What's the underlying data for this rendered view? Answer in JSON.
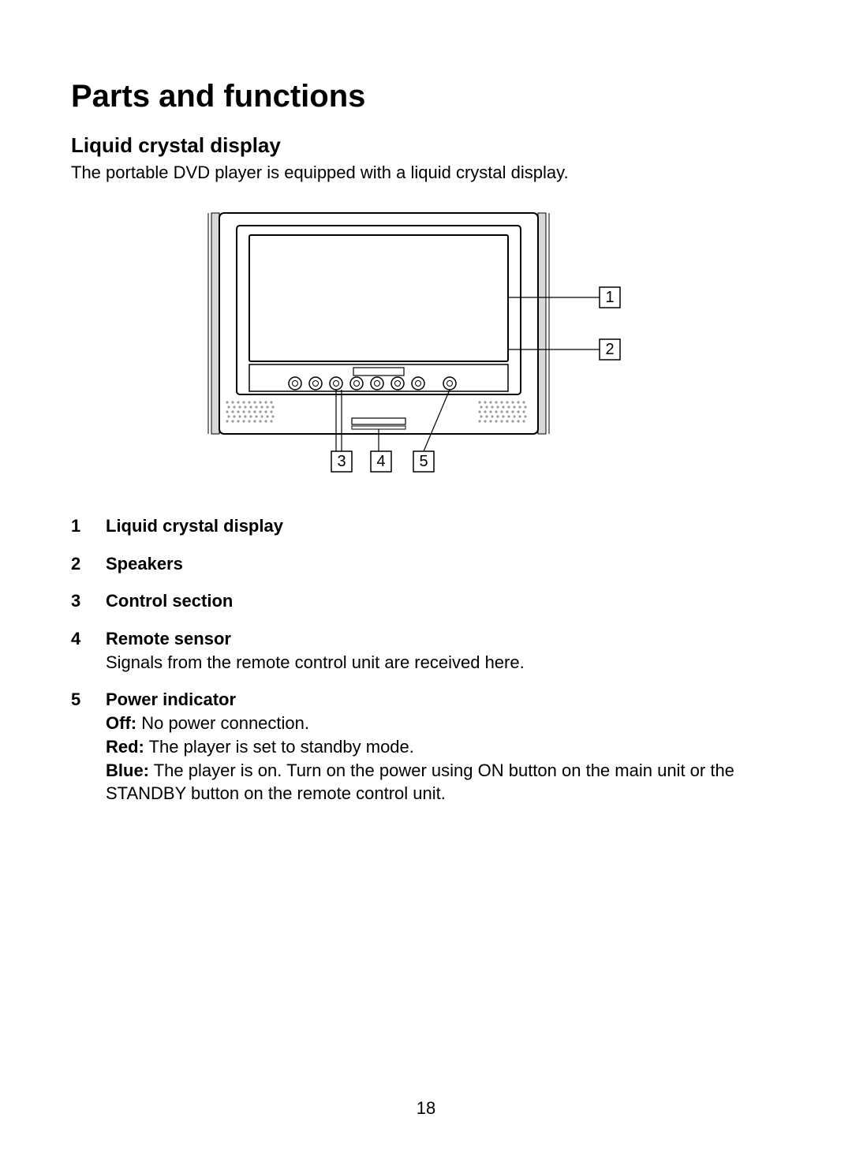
{
  "title": "Parts and functions",
  "section_heading": "Liquid crystal display",
  "intro": "The portable DVD player is equipped with a liquid crystal display.",
  "diagram": {
    "outer_stroke": "#000000",
    "inner_fill": "#ffffff",
    "side_rail_fill": "#d9d9d9",
    "speaker_dot_fill": "#9a9a9a",
    "button_stroke": "#000000",
    "callouts": [
      "1",
      "2",
      "3",
      "4",
      "5"
    ]
  },
  "items": [
    {
      "n": "1",
      "label": "Liquid crystal display"
    },
    {
      "n": "2",
      "label": "Speakers"
    },
    {
      "n": "3",
      "label": "Control section"
    },
    {
      "n": "4",
      "label": "Remote sensor",
      "desc": "Signals from the remote control unit are received here."
    },
    {
      "n": "5",
      "label": "Power indicator",
      "states": [
        {
          "name": "Off:",
          "text": " No power connection."
        },
        {
          "name": "Red:",
          "text": " The player is set to standby mode."
        },
        {
          "name": "Blue:",
          "text": " The player is on. Turn on the power using ON button on the main unit or the STANDBY button on the remote control unit."
        }
      ]
    }
  ],
  "page_number": "18"
}
